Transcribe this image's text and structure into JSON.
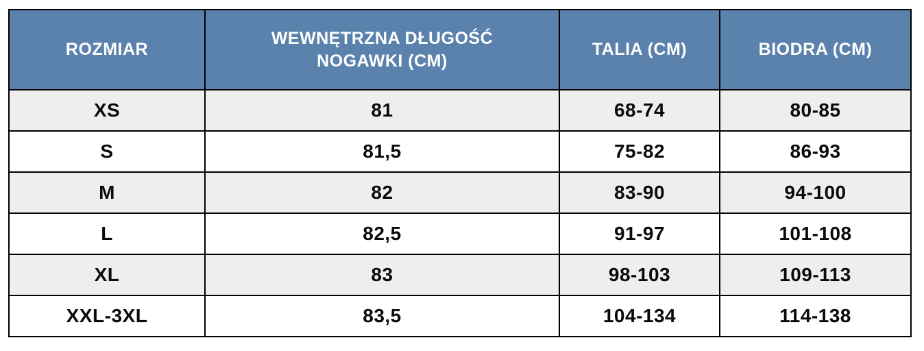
{
  "table": {
    "columns": [
      {
        "key": "size",
        "label": "ROZMIAR"
      },
      {
        "key": "inseam_cm",
        "label": "WEWNĘTRZNA DŁUGOŚĆ NOGAWKI (CM)"
      },
      {
        "key": "waist_cm",
        "label": "TALIA (CM)"
      },
      {
        "key": "hips_cm",
        "label": "BIODRA (CM)"
      }
    ],
    "rows": [
      {
        "size": "XS",
        "inseam_cm": "81",
        "waist_cm": "68-74",
        "hips_cm": "80-85"
      },
      {
        "size": "S",
        "inseam_cm": "81,5",
        "waist_cm": "75-82",
        "hips_cm": "86-93"
      },
      {
        "size": "M",
        "inseam_cm": "82",
        "waist_cm": "83-90",
        "hips_cm": "94-100"
      },
      {
        "size": "L",
        "inseam_cm": "82,5",
        "waist_cm": "91-97",
        "hips_cm": "101-108"
      },
      {
        "size": "XL",
        "inseam_cm": "83",
        "waist_cm": "98-103",
        "hips_cm": "109-113"
      },
      {
        "size": "XXL-3XL",
        "inseam_cm": "83,5",
        "waist_cm": "104-134",
        "hips_cm": "114-138"
      }
    ]
  },
  "colors": {
    "header_bg": "#5B82AD",
    "header_text": "#FFFFFF",
    "row_stripe_bg": "#EEEEEE",
    "row_bg": "#FFFFFF",
    "border": "#000000",
    "body_text": "#0A0A0A"
  },
  "chart_data": {
    "type": "table",
    "title": "",
    "columns": [
      "ROZMIAR",
      "WEWNĘTRZNA DŁUGOŚĆ NOGAWKI (CM)",
      "TALIA (CM)",
      "BIODRA (CM)"
    ],
    "rows": [
      [
        "XS",
        "81",
        "68-74",
        "80-85"
      ],
      [
        "S",
        "81,5",
        "75-82",
        "86-93"
      ],
      [
        "M",
        "82",
        "83-90",
        "94-100"
      ],
      [
        "L",
        "82,5",
        "91-97",
        "101-108"
      ],
      [
        "XL",
        "83",
        "98-103",
        "109-113"
      ],
      [
        "XXL-3XL",
        "83,5",
        "104-134",
        "114-138"
      ]
    ],
    "notes": "Size chart (Polish): size, inner leg length (cm), waist (cm), hips (cm). Header row blue with white text; data rows alternate light gray / white."
  }
}
